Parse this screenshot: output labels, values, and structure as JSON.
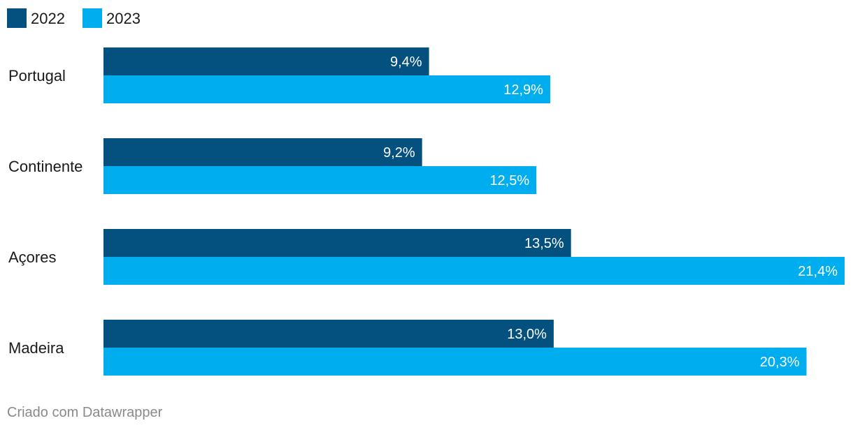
{
  "chart_data": {
    "type": "bar",
    "orientation": "horizontal",
    "categories": [
      "Portugal",
      "Continente",
      "Açores",
      "Madeira"
    ],
    "series": [
      {
        "name": "2022",
        "color": "#04517f",
        "values": [
          9.4,
          9.2,
          13.5,
          13.0
        ],
        "labels": [
          "9,4%",
          "9,2%",
          "13,5%",
          "13,0%"
        ]
      },
      {
        "name": "2023",
        "color": "#00adee",
        "values": [
          12.9,
          12.5,
          21.4,
          20.3
        ],
        "labels": [
          "12,9%",
          "12,5%",
          "21,4%",
          "20,3%"
        ]
      }
    ],
    "xlim": [
      0,
      21.4
    ],
    "legend_position": "top-left",
    "grid": false
  },
  "footer": {
    "credit": "Criado com Datawrapper"
  }
}
